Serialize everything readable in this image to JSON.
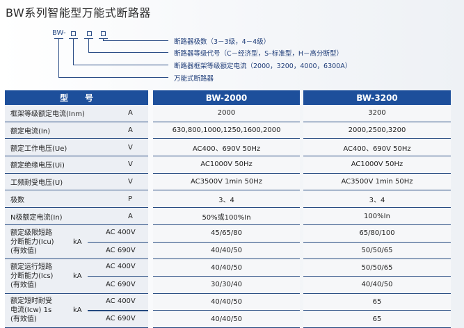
{
  "title": "BW系列智能型万能式断路器",
  "model_code": {
    "prefix": "BW-",
    "legend": [
      "断路器极数（3－3级，4－4级）",
      "断路器等级代号（C－经济型，S–标准型，H－高分断型）",
      "断路器框架等级额定电流（2000，3200，4000，6300A）",
      "万能式断路器"
    ]
  },
  "table": {
    "headers": [
      "型　　号",
      "BW-2000",
      "BW-3200"
    ],
    "rows": [
      {
        "name": "框架等级额定电流(Inm)",
        "unit": "A",
        "bw2000": "2000",
        "bw3200": "3200"
      },
      {
        "name": "额定电流(In)",
        "unit": "A",
        "bw2000": "630,800,1000,1250,1600,2000",
        "bw3200": "2000,2500,3200"
      },
      {
        "name": "额定工作电压(Ue)",
        "unit": "V",
        "bw2000": "AC400、690V 50Hz",
        "bw3200": "AC400、690V 50Hz"
      },
      {
        "name": "额定绝缘电压(Ui)",
        "unit": "V",
        "bw2000": "AC1000V 50Hz",
        "bw3200": "AC1000V 50Hz"
      },
      {
        "name": "工频耐受电压(U)",
        "unit": "V",
        "bw2000": "AC3500V 1min 50Hz",
        "bw3200": "AC3500V 1min 50Hz"
      },
      {
        "name": "极数",
        "unit": "P",
        "bw2000": "3、4",
        "bw3200": "3、4"
      },
      {
        "name": "N极额定电流(In)",
        "unit": "A",
        "bw2000": "50%或100%In",
        "bw3200": "100%In"
      }
    ],
    "groups": [
      {
        "name": [
          "额定级限短路",
          "分断能力(Icu)",
          "(有效值)"
        ],
        "unit": "kA",
        "sub": [
          {
            "v": "AC 400V",
            "bw2000": "45/65/80",
            "bw3200": "65/80/100"
          },
          {
            "v": "AC 690V",
            "bw2000": "40/40/50",
            "bw3200": "50/50/65"
          }
        ]
      },
      {
        "name": [
          "额定运行短路",
          "分断能力(Ics)",
          "(有效值)"
        ],
        "unit": "kA",
        "sub": [
          {
            "v": "AC 400V",
            "bw2000": "40/40/50",
            "bw3200": "50/50/65"
          },
          {
            "v": "AC 690V",
            "bw2000": "30/30/40",
            "bw3200": "40/40/50"
          }
        ]
      },
      {
        "name": [
          "额定短时耐受",
          "电流(Icw) 1s",
          "(有效值)"
        ],
        "unit": "kA",
        "sub": [
          {
            "v": "AC 400V",
            "bw2000": "40/40/50",
            "bw3200": "65"
          },
          {
            "v": "AC 690V",
            "bw2000": "40/40/50",
            "bw3200": "65"
          }
        ]
      }
    ]
  },
  "colors": {
    "header_bg": "#1d4f9b",
    "rule": "#23487f",
    "legend_text": "#1e3c78"
  }
}
